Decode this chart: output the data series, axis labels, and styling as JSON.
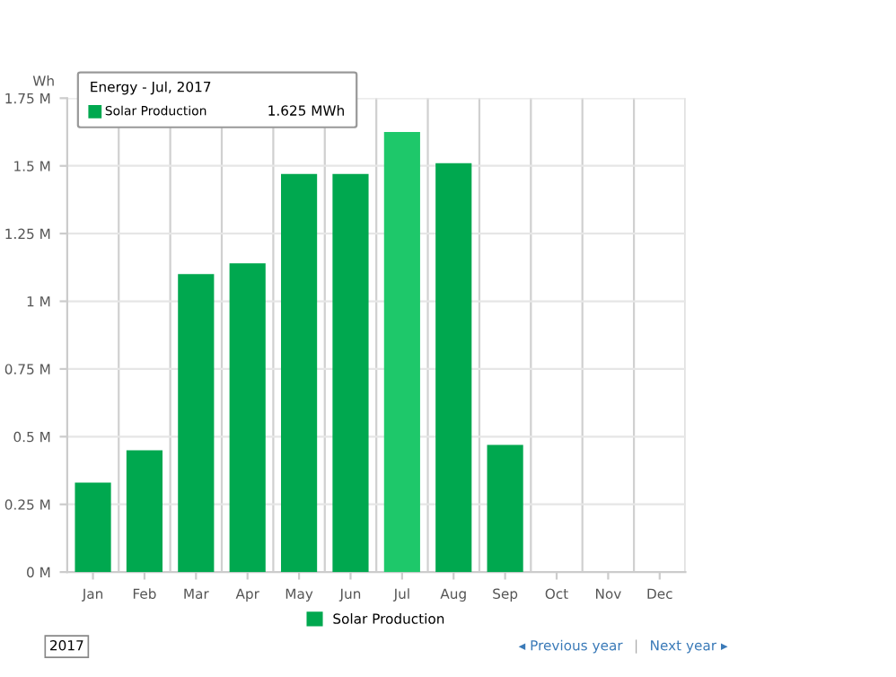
{
  "chart_data": {
    "type": "bar",
    "ylabel": "Wh",
    "categories": [
      "Jan",
      "Feb",
      "Mar",
      "Apr",
      "May",
      "Jun",
      "Jul",
      "Aug",
      "Sep",
      "Oct",
      "Nov",
      "Dec"
    ],
    "series": [
      {
        "name": "Solar Production",
        "color": "#00a84f",
        "colors": [
          "#00a84f",
          "#00a84f",
          "#00a84f",
          "#00a84f",
          "#00a84f",
          "#00a84f",
          "#1ec86a",
          "#00a84f",
          "#00a84f",
          "#00a84f",
          "#00a84f",
          "#00a84f"
        ],
        "values": [
          330000,
          450000,
          1100000,
          1140000,
          1470000,
          1470000,
          1625000,
          1510000,
          470000,
          null,
          null,
          null
        ]
      }
    ],
    "ylim": [
      0,
      1750000
    ],
    "yticks": [
      {
        "value": 0,
        "label": "0 M"
      },
      {
        "value": 250000,
        "label": "0.25 M"
      },
      {
        "value": 500000,
        "label": "0.5 M"
      },
      {
        "value": 750000,
        "label": "0.75 M"
      },
      {
        "value": 1000000,
        "label": "1 M"
      },
      {
        "value": 1250000,
        "label": "1.25 M"
      },
      {
        "value": 1500000,
        "label": "1.5 M"
      },
      {
        "value": 1750000,
        "label": "1.75 M"
      }
    ],
    "grid": true,
    "legend": "bottom",
    "annotations": [
      "Energy - Jul, 2017",
      "Solar Production",
      "1.625 MWh",
      "2017",
      "◂ Previous year",
      "|",
      "Next year ▸"
    ]
  }
}
